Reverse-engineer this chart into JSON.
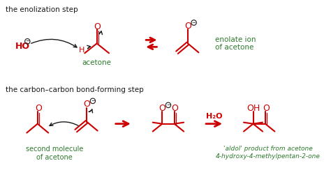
{
  "bg_color": "#ffffff",
  "red": "#cc0000",
  "green": "#2d7a2d",
  "black": "#1a1a1a",
  "title1": "the enolization step",
  "title2": "the carbon–carbon bond-forming step",
  "label_acetone": "acetone",
  "label_enolate": "enolate ion\nof acetone",
  "label_second": "second molecule\nof acetone",
  "label_aldol": "'aldol' product from acetone\n4-hydroxy-4-methylpentan-2-one",
  "label_h2o": "H₂O",
  "figsize": [
    4.74,
    2.44
  ],
  "dpi": 100
}
